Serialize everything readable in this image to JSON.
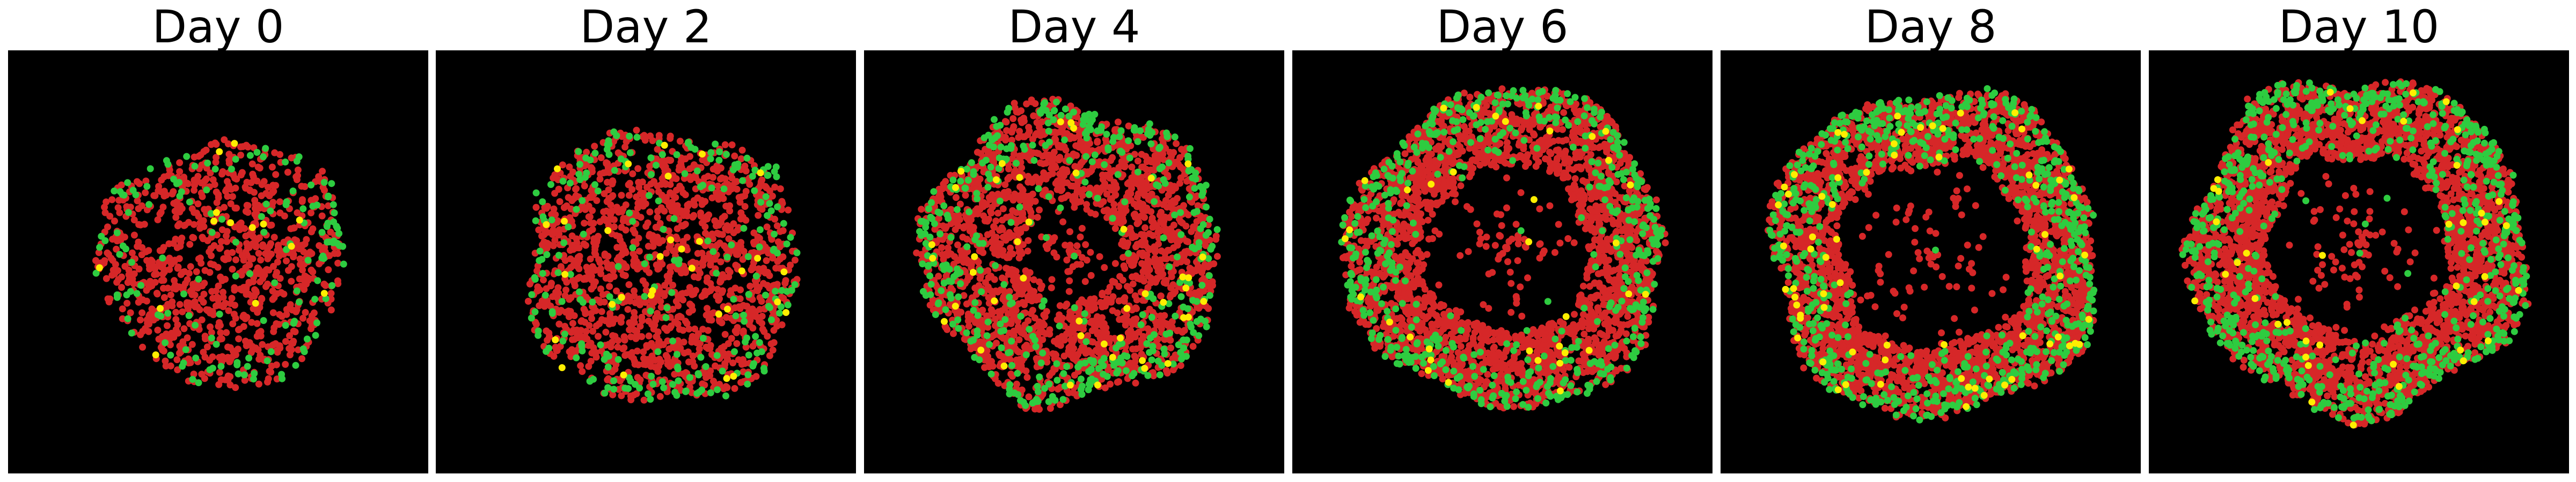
{
  "figure": {
    "panels": [
      {
        "title": "Day 0"
      },
      {
        "title": "Day 2"
      },
      {
        "title": "Day 4"
      },
      {
        "title": "Day 6"
      },
      {
        "title": "Day 8"
      },
      {
        "title": "Day 10"
      }
    ],
    "colors": {
      "background": "#000000",
      "cell_red": "#d62728",
      "cell_green": "#2ecc40",
      "cell_yellow": "#ffee00"
    }
  }
}
